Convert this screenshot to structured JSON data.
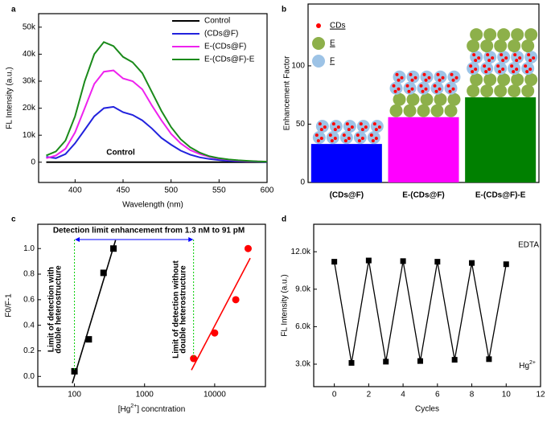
{
  "chart_data": [
    {
      "type": "line",
      "panel_label": "a",
      "xlabel": "Wavelength (nm)",
      "ylabel": "FL Intensity (a.u.)",
      "x": [
        370,
        380,
        390,
        400,
        410,
        420,
        430,
        440,
        450,
        460,
        470,
        480,
        490,
        500,
        510,
        520,
        530,
        540,
        550,
        560,
        570,
        580,
        590,
        600
      ],
      "series": [
        {
          "name": "Control",
          "color": "#000000",
          "values": [
            0,
            0,
            0,
            0,
            0,
            0,
            0,
            0,
            0,
            0,
            0,
            0,
            0,
            0,
            0,
            0,
            0,
            0,
            0,
            0,
            0,
            0,
            0,
            0
          ]
        },
        {
          "name": "(CDs@F)",
          "color": "#2222dd",
          "values": [
            2000,
            1500,
            3000,
            7000,
            12000,
            17000,
            20000,
            20500,
            18500,
            17500,
            15500,
            12500,
            9000,
            6500,
            4300,
            2800,
            1800,
            1200,
            800,
            500,
            400,
            300,
            200,
            100
          ]
        },
        {
          "name": "E-(CDs@F)",
          "color": "#ee22ee",
          "values": [
            1500,
            2500,
            5000,
            11000,
            20000,
            29000,
            33500,
            34000,
            31000,
            30000,
            27000,
            21000,
            15500,
            10500,
            7000,
            4500,
            3000,
            2000,
            1300,
            900,
            600,
            400,
            300,
            200
          ]
        },
        {
          "name": "E-(CDs@F)-E",
          "color": "#1a8a1a",
          "values": [
            2500,
            4000,
            8000,
            17000,
            30000,
            40000,
            44500,
            43000,
            39000,
            37000,
            33000,
            26000,
            19000,
            13000,
            8500,
            5500,
            3500,
            2200,
            1500,
            1000,
            700,
            500,
            300,
            200
          ]
        }
      ],
      "xlim": [
        362,
        600
      ],
      "ylim": [
        -7500,
        55000
      ],
      "xticks": [
        400,
        450,
        500,
        550,
        600
      ],
      "yticks": [
        0,
        {
          "value": 10000,
          "label": "10k"
        },
        {
          "value": 20000,
          "label": "20k"
        },
        {
          "value": 30000,
          "label": "30k"
        },
        {
          "value": 40000,
          "label": "40k"
        },
        {
          "value": 50000,
          "label": "50k"
        }
      ],
      "legend": "upper right",
      "annotations": [
        "Control"
      ]
    },
    {
      "type": "bar",
      "panel_label": "b",
      "ylabel": "Enhancement Factor",
      "categories": [
        "(CDs@F)",
        "E-(CDs@F)",
        "E-(CDs@F)-E"
      ],
      "values": [
        33,
        56,
        73
      ],
      "colors": [
        "#0000ff",
        "#ff00ff",
        "#008000"
      ],
      "ylim": [
        0,
        153
      ],
      "yticks": [
        0,
        50,
        100
      ],
      "legend_items": [
        {
          "name": "CDs",
          "color": "#ff0000"
        },
        {
          "name": "E",
          "color": "#8db04a"
        },
        {
          "name": "F",
          "color": "#9dc3e6"
        }
      ]
    },
    {
      "type": "scatter",
      "panel_label": "c",
      "xlabel": [
        "[Hg",
        "2+",
        "] concntration"
      ],
      "ylabel": "F0/F-1",
      "xscale": "log",
      "xlim": [
        30,
        53000
      ],
      "ylim": [
        -0.08,
        1.19
      ],
      "xticks": [
        100,
        1000,
        10000
      ],
      "yticks": [
        {
          "value": 0,
          "label": "0.0"
        },
        0.2,
        0.4,
        0.6,
        0.8,
        {
          "value": 1,
          "label": "1.0"
        }
      ],
      "series": [
        {
          "color": "#000000",
          "marker": "square",
          "x": [
            100,
            160,
            260,
            360
          ],
          "values": [
            0.04,
            0.29,
            0.81,
            1.0
          ]
        },
        {
          "color": "#ff0000",
          "marker": "circle",
          "x": [
            5000,
            10000,
            20000,
            30000
          ],
          "values": [
            0.14,
            0.34,
            0.6,
            1.0
          ]
        }
      ],
      "fit": true,
      "annotations": [
        "Detection limit enhancement from 1.3 nM to 91 pM",
        "Limit of detection with",
        "double heterostructure",
        "Limit of detection without",
        "double heterostructure"
      ]
    },
    {
      "type": "line",
      "panel_label": "d",
      "markers": "square",
      "xlabel": "Cycles",
      "ylabel": "FL Intensity (a.u.)",
      "x": [
        0,
        1,
        2,
        3,
        4,
        5,
        6,
        7,
        8,
        9,
        10
      ],
      "series": [
        {
          "color": "#000000",
          "values": [
            11200,
            3100,
            11300,
            3200,
            11250,
            3250,
            11200,
            3350,
            11100,
            3400,
            11000
          ]
        }
      ],
      "xlim": [
        -1.2,
        12
      ],
      "ylim": [
        1200,
        14200
      ],
      "xticks": [
        0,
        2,
        4,
        6,
        8,
        10,
        12
      ],
      "yticks": [
        {
          "value": 3000,
          "label": "3.0k"
        },
        {
          "value": 6000,
          "label": "6.0k"
        },
        {
          "value": 9000,
          "label": "9.0k"
        },
        {
          "value": 12000,
          "label": "12.0k"
        }
      ],
      "annotations": [
        "EDTA",
        [
          "Hg",
          "2+"
        ]
      ]
    }
  ]
}
